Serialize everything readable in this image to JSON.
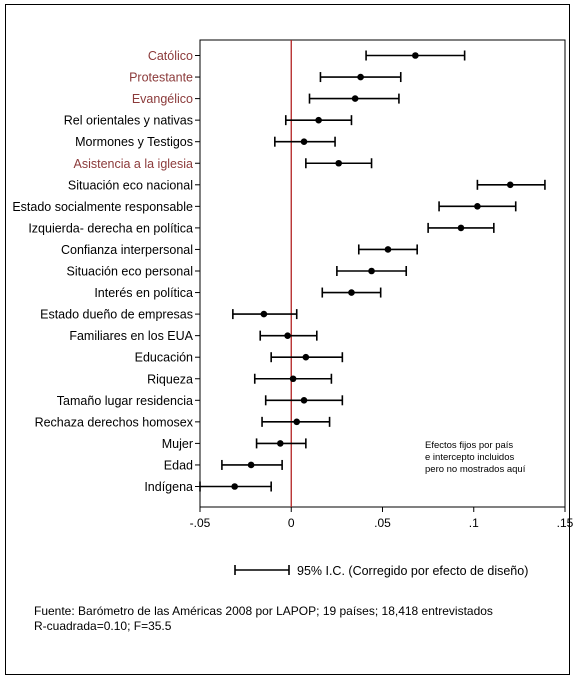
{
  "chart_data": {
    "type": "scatter",
    "subtype": "coefficient-plot-with-95ci",
    "xlim": [
      -0.05,
      0.15
    ],
    "xticks": [
      -0.05,
      0,
      0.05,
      0.1,
      0.15
    ],
    "xtick_labels": [
      "-.05",
      "0",
      ".05",
      ".1",
      ".15"
    ],
    "reference_line_x": 0,
    "reference_line_color": "#b22222",
    "highlight_color": "#8b3a3a",
    "point_color": "#000000",
    "rows": [
      {
        "label": "Católico",
        "estimate": 0.068,
        "ci": [
          0.041,
          0.095
        ],
        "highlight": true
      },
      {
        "label": "Protestante",
        "estimate": 0.038,
        "ci": [
          0.016,
          0.06
        ],
        "highlight": true
      },
      {
        "label": "Evangélico",
        "estimate": 0.035,
        "ci": [
          0.01,
          0.059
        ],
        "highlight": true
      },
      {
        "label": "Rel orientales y nativas",
        "estimate": 0.015,
        "ci": [
          -0.003,
          0.033
        ],
        "highlight": false
      },
      {
        "label": "Mormones y Testigos",
        "estimate": 0.007,
        "ci": [
          -0.009,
          0.024
        ],
        "highlight": false
      },
      {
        "label": "Asistencia a la iglesia",
        "estimate": 0.026,
        "ci": [
          0.008,
          0.044
        ],
        "highlight": true
      },
      {
        "label": "Situación eco nacional",
        "estimate": 0.12,
        "ci": [
          0.102,
          0.139
        ],
        "highlight": false
      },
      {
        "label": "Estado socialmente responsable",
        "estimate": 0.102,
        "ci": [
          0.081,
          0.123
        ],
        "highlight": false
      },
      {
        "label": "Izquierda- derecha en política",
        "estimate": 0.093,
        "ci": [
          0.075,
          0.111
        ],
        "highlight": false
      },
      {
        "label": "Confianza interpersonal",
        "estimate": 0.053,
        "ci": [
          0.037,
          0.069
        ],
        "highlight": false
      },
      {
        "label": "Situación eco personal",
        "estimate": 0.044,
        "ci": [
          0.025,
          0.063
        ],
        "highlight": false
      },
      {
        "label": "Interés en política",
        "estimate": 0.033,
        "ci": [
          0.017,
          0.049
        ],
        "highlight": false
      },
      {
        "label": "Estado dueño de empresas",
        "estimate": -0.015,
        "ci": [
          -0.032,
          0.003
        ],
        "highlight": false
      },
      {
        "label": "Familiares en los EUA",
        "estimate": -0.002,
        "ci": [
          -0.017,
          0.014
        ],
        "highlight": false
      },
      {
        "label": "Educación",
        "estimate": 0.008,
        "ci": [
          -0.011,
          0.028
        ],
        "highlight": false
      },
      {
        "label": "Riqueza",
        "estimate": 0.001,
        "ci": [
          -0.02,
          0.022
        ],
        "highlight": false
      },
      {
        "label": "Tamaño lugar residencia",
        "estimate": 0.007,
        "ci": [
          -0.014,
          0.028
        ],
        "highlight": false
      },
      {
        "label": "Rechaza derechos homosex",
        "estimate": 0.003,
        "ci": [
          -0.016,
          0.021
        ],
        "highlight": false
      },
      {
        "label": "Mujer",
        "estimate": -0.006,
        "ci": [
          -0.019,
          0.008
        ],
        "highlight": false
      },
      {
        "label": "Edad",
        "estimate": -0.022,
        "ci": [
          -0.038,
          -0.005
        ],
        "highlight": false
      },
      {
        "label": "Indígena",
        "estimate": -0.031,
        "ci": [
          -0.05,
          -0.011
        ],
        "highlight": false
      }
    ],
    "annotation": [
      "Efectos fijos por país",
      "e intercepto incluidos",
      "pero no mostrados aquí"
    ],
    "legend": {
      "label": "95% I.C. (Corregido por efecto de diseño)"
    }
  },
  "source": {
    "line1": "Fuente: Barómetro de las Américas 2008 por LAPOP; 19 países; 18,418 entrevistados",
    "line2": "R-cuadrada=0.10; F=35.5"
  }
}
